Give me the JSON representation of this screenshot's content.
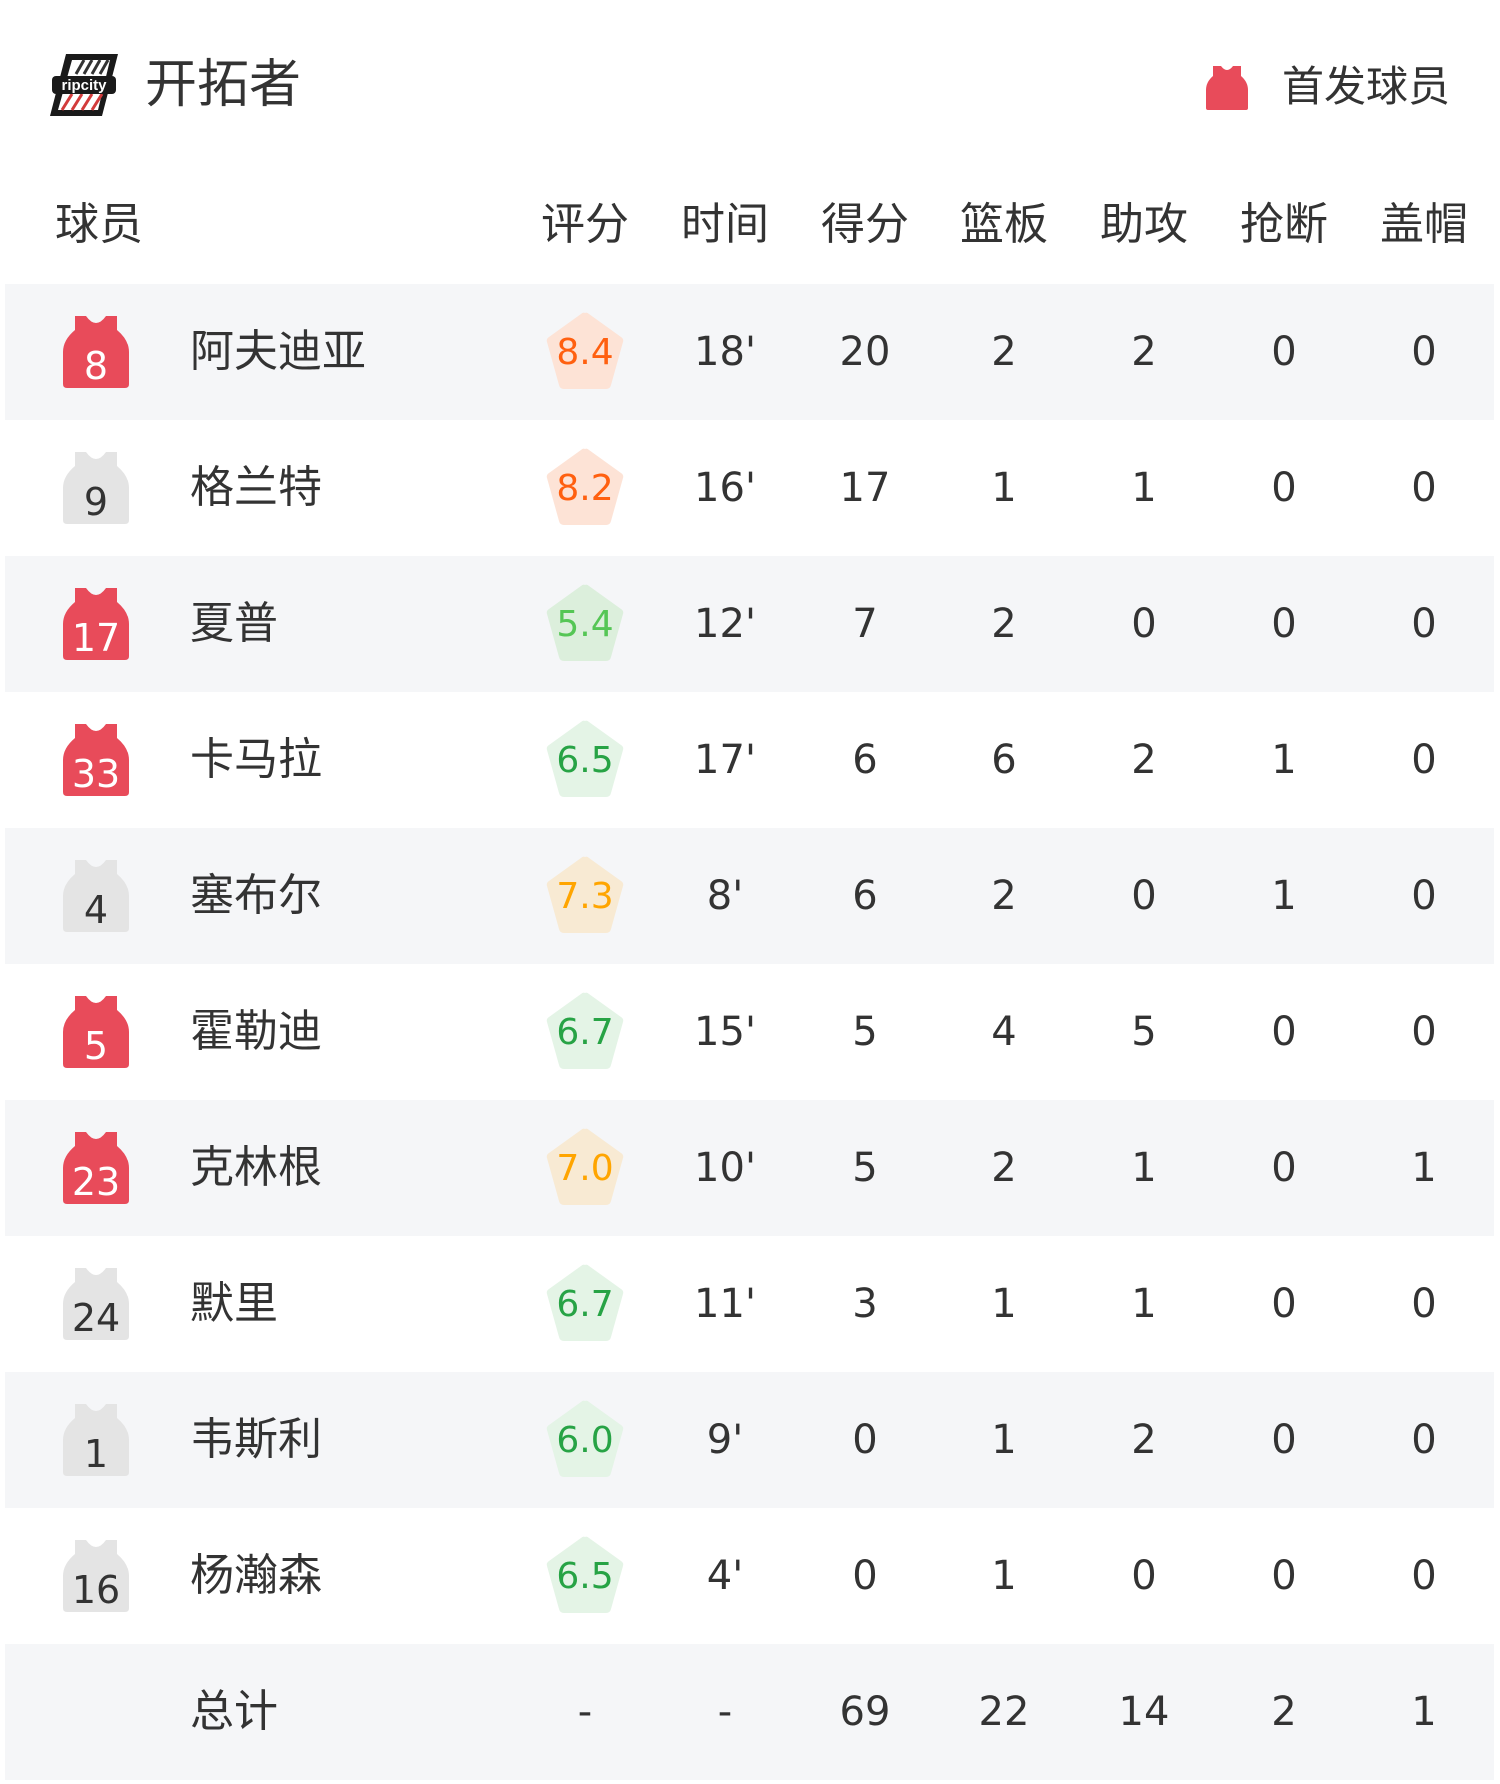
{
  "header": {
    "team_name": "开拓者",
    "logo_text": "ripcity",
    "legend_label": "首发球员",
    "starter_color": "#e84b5a",
    "bench_color": "#e4e4e4"
  },
  "columns": [
    "球员",
    "评分",
    "时间",
    "得分",
    "篮板",
    "助攻",
    "抢断",
    "盖帽"
  ],
  "players": [
    {
      "number": "8",
      "name": "阿夫迪亚",
      "starter": true,
      "rating": "8.4",
      "time": "18'",
      "points": "20",
      "rebounds": "2",
      "assists": "2",
      "steals": "0",
      "blocks": "0"
    },
    {
      "number": "9",
      "name": "格兰特",
      "starter": false,
      "rating": "8.2",
      "time": "16'",
      "points": "17",
      "rebounds": "1",
      "assists": "1",
      "steals": "0",
      "blocks": "0"
    },
    {
      "number": "17",
      "name": "夏普",
      "starter": true,
      "rating": "5.4",
      "time": "12'",
      "points": "7",
      "rebounds": "2",
      "assists": "0",
      "steals": "0",
      "blocks": "0"
    },
    {
      "number": "33",
      "name": "卡马拉",
      "starter": true,
      "rating": "6.5",
      "time": "17'",
      "points": "6",
      "rebounds": "6",
      "assists": "2",
      "steals": "1",
      "blocks": "0"
    },
    {
      "number": "4",
      "name": "塞布尔",
      "starter": false,
      "rating": "7.3",
      "time": "8'",
      "points": "6",
      "rebounds": "2",
      "assists": "0",
      "steals": "1",
      "blocks": "0"
    },
    {
      "number": "5",
      "name": "霍勒迪",
      "starter": true,
      "rating": "6.7",
      "time": "15'",
      "points": "5",
      "rebounds": "4",
      "assists": "5",
      "steals": "0",
      "blocks": "0"
    },
    {
      "number": "23",
      "name": "克林根",
      "starter": true,
      "rating": "7.0",
      "time": "10'",
      "points": "5",
      "rebounds": "2",
      "assists": "1",
      "steals": "0",
      "blocks": "1"
    },
    {
      "number": "24",
      "name": "默里",
      "starter": false,
      "rating": "6.7",
      "time": "11'",
      "points": "3",
      "rebounds": "1",
      "assists": "1",
      "steals": "0",
      "blocks": "0"
    },
    {
      "number": "1",
      "name": "韦斯利",
      "starter": false,
      "rating": "6.0",
      "time": "9'",
      "points": "0",
      "rebounds": "1",
      "assists": "2",
      "steals": "0",
      "blocks": "0"
    },
    {
      "number": "16",
      "name": "杨瀚森",
      "starter": false,
      "rating": "6.5",
      "time": "4'",
      "points": "0",
      "rebounds": "1",
      "assists": "0",
      "steals": "0",
      "blocks": "0"
    }
  ],
  "total": {
    "label": "总计",
    "rating": "-",
    "time": "-",
    "points": "69",
    "rebounds": "22",
    "assists": "14",
    "steals": "2",
    "blocks": "1"
  },
  "rating_colors": {
    "high": {
      "text": "#ff6010",
      "bg": "#fde3d6"
    },
    "good": {
      "text": "#ffa500",
      "bg": "#f8ead3"
    },
    "mid": {
      "text": "#27a345",
      "bg": "#e4f4e6"
    },
    "low": {
      "text": "#55c655",
      "bg": "#dcefdc"
    }
  }
}
